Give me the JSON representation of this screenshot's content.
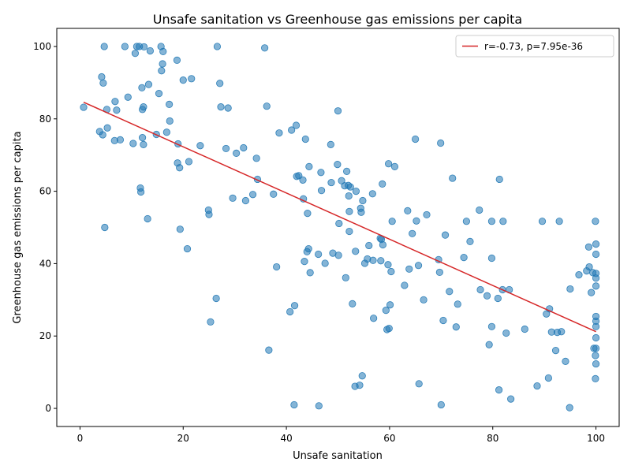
{
  "chart_data": {
    "type": "scatter",
    "title": "Unsafe sanitation vs Greenhouse gas emissions per capita",
    "xlabel": "Unsafe sanitation",
    "ylabel": "Greenhouse gas emissions per capita",
    "xlim": [
      -4.5,
      104.5
    ],
    "ylim": [
      -5,
      105
    ],
    "xticks": [
      0,
      20,
      40,
      60,
      80,
      100
    ],
    "yticks": [
      0,
      20,
      40,
      60,
      80,
      100
    ],
    "grid": false,
    "legend_position": "top-right",
    "point_color": "#1f77b4",
    "fit_color": "#d62728",
    "fit_line": {
      "label": "r=-0.73, p=7.95e-36",
      "x": [
        0.7,
        100
      ],
      "y": [
        84.6,
        21.2
      ]
    },
    "points": [
      [
        0.7,
        83.2
      ],
      [
        3.8,
        76.5
      ],
      [
        4.2,
        91.6
      ],
      [
        4.4,
        75.6
      ],
      [
        4.5,
        89.9
      ],
      [
        4.7,
        100
      ],
      [
        4.8,
        50.0
      ],
      [
        5.2,
        82.6
      ],
      [
        5.3,
        77.5
      ],
      [
        6.7,
        74.0
      ],
      [
        6.8,
        84.8
      ],
      [
        7.1,
        82.4
      ],
      [
        7.8,
        74.2
      ],
      [
        8.7,
        100
      ],
      [
        9.3,
        86.0
      ],
      [
        10.3,
        73.2
      ],
      [
        10.7,
        98.1
      ],
      [
        11.0,
        100
      ],
      [
        11.5,
        100
      ],
      [
        11.7,
        60.9
      ],
      [
        11.8,
        59.8
      ],
      [
        12.0,
        88.6
      ],
      [
        12.1,
        74.8
      ],
      [
        12.1,
        82.6
      ],
      [
        12.3,
        83.3
      ],
      [
        12.3,
        72.9
      ],
      [
        12.4,
        99.9
      ],
      [
        13.1,
        52.4
      ],
      [
        13.3,
        89.5
      ],
      [
        13.6,
        98.8
      ],
      [
        14.8,
        75.7
      ],
      [
        15.3,
        87.0
      ],
      [
        15.7,
        100
      ],
      [
        15.8,
        93.3
      ],
      [
        16.0,
        95.2
      ],
      [
        16.1,
        98.6
      ],
      [
        16.8,
        76.3
      ],
      [
        17.3,
        84.0
      ],
      [
        17.4,
        79.4
      ],
      [
        18.8,
        96.2
      ],
      [
        18.9,
        67.8
      ],
      [
        19.0,
        73.1
      ],
      [
        19.3,
        66.5
      ],
      [
        19.4,
        49.5
      ],
      [
        20.0,
        90.7
      ],
      [
        20.8,
        44.1
      ],
      [
        21.1,
        68.2
      ],
      [
        21.6,
        91.1
      ],
      [
        23.3,
        72.6
      ],
      [
        24.9,
        54.8
      ],
      [
        25.0,
        53.6
      ],
      [
        25.3,
        23.9
      ],
      [
        26.4,
        30.4
      ],
      [
        26.6,
        100
      ],
      [
        27.1,
        89.8
      ],
      [
        27.3,
        83.3
      ],
      [
        28.3,
        71.8
      ],
      [
        28.7,
        83.0
      ],
      [
        29.6,
        58.1
      ],
      [
        30.3,
        70.5
      ],
      [
        31.7,
        72.0
      ],
      [
        32.1,
        57.4
      ],
      [
        33.5,
        59.1
      ],
      [
        34.2,
        69.1
      ],
      [
        34.4,
        63.3
      ],
      [
        35.8,
        99.6
      ],
      [
        36.2,
        83.5
      ],
      [
        36.6,
        16.1
      ],
      [
        37.5,
        59.2
      ],
      [
        38.1,
        39.1
      ],
      [
        38.6,
        76.1
      ],
      [
        40.7,
        26.7
      ],
      [
        41.0,
        76.9
      ],
      [
        41.5,
        1.0
      ],
      [
        41.6,
        28.4
      ],
      [
        41.9,
        78.2
      ],
      [
        42.0,
        64.1
      ],
      [
        42.4,
        64.3
      ],
      [
        43.2,
        63.1
      ],
      [
        43.3,
        57.9
      ],
      [
        43.5,
        40.6
      ],
      [
        43.7,
        74.4
      ],
      [
        44.0,
        43.3
      ],
      [
        44.1,
        53.9
      ],
      [
        44.3,
        44.1
      ],
      [
        44.4,
        66.8
      ],
      [
        44.6,
        37.5
      ],
      [
        46.2,
        42.6
      ],
      [
        46.3,
        0.7
      ],
      [
        46.7,
        65.2
      ],
      [
        46.8,
        60.2
      ],
      [
        47.5,
        40.1
      ],
      [
        48.6,
        72.9
      ],
      [
        48.7,
        62.4
      ],
      [
        49.0,
        42.9
      ],
      [
        49.9,
        67.4
      ],
      [
        50.0,
        82.2
      ],
      [
        50.1,
        42.3
      ],
      [
        50.2,
        51.1
      ],
      [
        50.7,
        62.9
      ],
      [
        51.3,
        61.5
      ],
      [
        51.5,
        36.1
      ],
      [
        51.7,
        65.5
      ],
      [
        52.0,
        61.6
      ],
      [
        52.1,
        58.7
      ],
      [
        52.2,
        54.4
      ],
      [
        52.2,
        48.9
      ],
      [
        52.4,
        61.2
      ],
      [
        52.8,
        28.9
      ],
      [
        53.3,
        6.1
      ],
      [
        53.4,
        43.4
      ],
      [
        53.5,
        60.0
      ],
      [
        54.2,
        6.4
      ],
      [
        54.4,
        55.3
      ],
      [
        54.5,
        54.2
      ],
      [
        54.7,
        9.0
      ],
      [
        54.8,
        57.4
      ],
      [
        55.2,
        40.1
      ],
      [
        55.7,
        41.3
      ],
      [
        56.0,
        45.0
      ],
      [
        56.7,
        59.3
      ],
      [
        56.8,
        40.9
      ],
      [
        56.9,
        24.9
      ],
      [
        58.2,
        47.0
      ],
      [
        58.3,
        40.8
      ],
      [
        58.4,
        46.7
      ],
      [
        58.6,
        62.0
      ],
      [
        58.7,
        45.2
      ],
      [
        59.3,
        27.1
      ],
      [
        59.5,
        21.8
      ],
      [
        59.7,
        39.7
      ],
      [
        59.8,
        67.6
      ],
      [
        59.9,
        22.1
      ],
      [
        60.1,
        28.6
      ],
      [
        60.3,
        37.8
      ],
      [
        60.5,
        51.7
      ],
      [
        61.0,
        66.8
      ],
      [
        62.9,
        34.0
      ],
      [
        63.5,
        54.6
      ],
      [
        63.8,
        38.5
      ],
      [
        64.4,
        48.3
      ],
      [
        65.0,
        74.4
      ],
      [
        65.2,
        51.8
      ],
      [
        65.6,
        39.5
      ],
      [
        65.7,
        6.8
      ],
      [
        66.6,
        30.0
      ],
      [
        67.2,
        53.5
      ],
      [
        69.5,
        41.1
      ],
      [
        69.7,
        37.6
      ],
      [
        69.9,
        73.3
      ],
      [
        70.0,
        1.0
      ],
      [
        70.4,
        24.3
      ],
      [
        70.8,
        47.9
      ],
      [
        71.6,
        32.3
      ],
      [
        72.2,
        63.6
      ],
      [
        72.9,
        22.5
      ],
      [
        73.2,
        28.8
      ],
      [
        74.4,
        41.7
      ],
      [
        74.9,
        51.7
      ],
      [
        75.6,
        46.1
      ],
      [
        77.4,
        54.8
      ],
      [
        77.6,
        32.8
      ],
      [
        78.9,
        31.1
      ],
      [
        79.3,
        17.6
      ],
      [
        79.8,
        22.6
      ],
      [
        79.8,
        41.5
      ],
      [
        79.8,
        51.7
      ],
      [
        81.0,
        30.4
      ],
      [
        81.2,
        5.1
      ],
      [
        81.3,
        63.3
      ],
      [
        81.9,
        32.8
      ],
      [
        82.0,
        51.7
      ],
      [
        82.6,
        20.8
      ],
      [
        83.2,
        32.8
      ],
      [
        83.5,
        2.6
      ],
      [
        86.2,
        21.9
      ],
      [
        88.6,
        6.2
      ],
      [
        89.6,
        51.7
      ],
      [
        90.4,
        26.1
      ],
      [
        90.8,
        8.4
      ],
      [
        91.0,
        27.5
      ],
      [
        91.4,
        21.1
      ],
      [
        92.2,
        16.0
      ],
      [
        92.5,
        21.0
      ],
      [
        92.9,
        51.7
      ],
      [
        93.3,
        21.2
      ],
      [
        94.1,
        13.0
      ],
      [
        94.9,
        0.2
      ],
      [
        95.0,
        33.0
      ],
      [
        96.7,
        36.9
      ],
      [
        98.2,
        38.0
      ],
      [
        98.6,
        44.6
      ],
      [
        98.7,
        39.1
      ],
      [
        99.1,
        32.0
      ],
      [
        99.4,
        37.5
      ],
      [
        99.6,
        16.6
      ],
      [
        99.9,
        8.2
      ],
      [
        99.9,
        14.6
      ],
      [
        99.9,
        51.7
      ],
      [
        100.0,
        12.3
      ],
      [
        100.0,
        16.6
      ],
      [
        100.0,
        19.5
      ],
      [
        100.0,
        22.6
      ],
      [
        100.0,
        24.1
      ],
      [
        100.0,
        25.4
      ],
      [
        100.0,
        33.8
      ],
      [
        100.0,
        36.0
      ],
      [
        100.0,
        37.3
      ],
      [
        100.0,
        42.6
      ],
      [
        100.0,
        45.4
      ]
    ]
  }
}
